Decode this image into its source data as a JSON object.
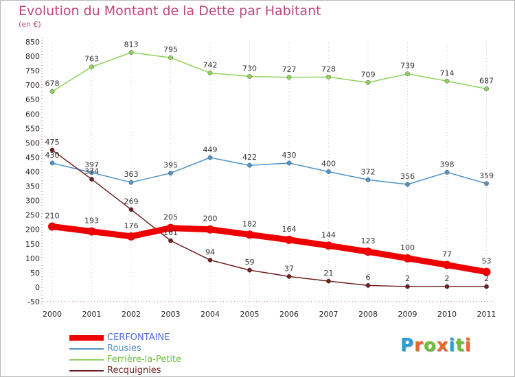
{
  "header": {
    "title": "Evolution du Montant de la Dette par Habitant",
    "unit": "(en €)"
  },
  "logo": {
    "text": "Proxiti",
    "letter_colors": [
      "#2a9ed8",
      "#e8672a",
      "#6cbf3a",
      "#e8672a",
      "#2a9ed8",
      "#6cbf3a",
      "#e8672a"
    ]
  },
  "chart_data": {
    "type": "line",
    "title": "Evolution du Montant de la Dette par Habitant",
    "ylabel": "(en €)",
    "xlabel": "",
    "x": [
      "2000",
      "2001",
      "2002",
      "2003",
      "2004",
      "2005",
      "2006",
      "2007",
      "2008",
      "2009",
      "2010",
      "2011"
    ],
    "ylim": [
      -50,
      850
    ],
    "ytick_step": 50,
    "grid": "vertical-dotted",
    "legend_position": "bottom-left",
    "series": [
      {
        "name": "Ferrière-la-Petite",
        "color": "#8ed35a",
        "values": [
          678,
          763,
          813,
          795,
          742,
          730,
          727,
          728,
          709,
          739,
          714,
          687
        ]
      },
      {
        "name": "Rousies",
        "color": "#4f93c9",
        "values": [
          430,
          397,
          363,
          395,
          449,
          422,
          430,
          400,
          372,
          356,
          398,
          359
        ]
      },
      {
        "name": "Recquignies",
        "color": "#6e1e1e",
        "values": [
          475,
          374,
          269,
          161,
          94,
          59,
          37,
          21,
          6,
          2,
          2,
          2
        ]
      },
      {
        "name": "CERFONTAINE",
        "color": "#ee0000",
        "values": [
          210,
          193,
          176,
          205,
          200,
          182,
          164,
          144,
          123,
          100,
          77,
          53
        ]
      }
    ],
    "legend_order": [
      "CERFONTAINE",
      "Rousies",
      "Ferrière-la-Petite",
      "Recquignies"
    ]
  }
}
